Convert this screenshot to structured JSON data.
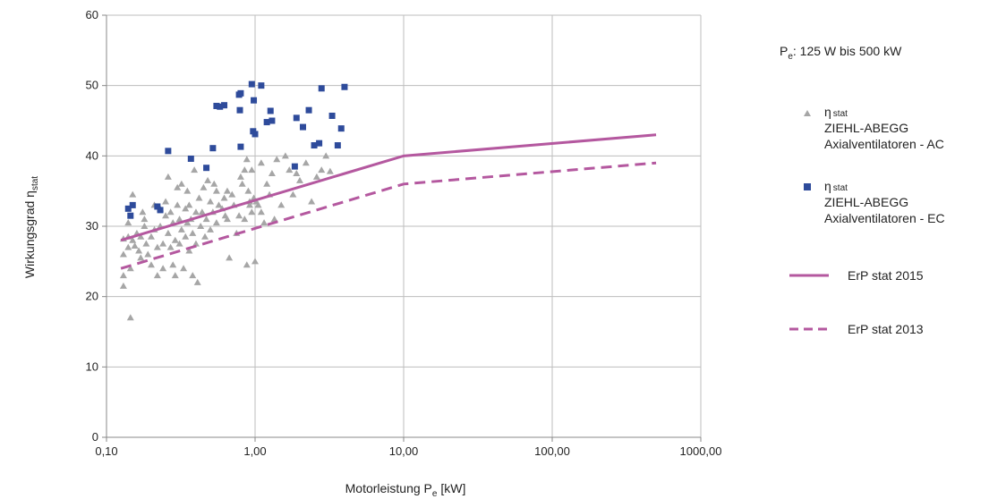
{
  "chart_data": {
    "type": "scatter",
    "x_scale": "log",
    "xlim": [
      0.1,
      1000
    ],
    "ylim": [
      0,
      60
    ],
    "x_ticks": [
      0.1,
      1,
      10,
      100,
      1000
    ],
    "x_tick_labels": [
      "0,10",
      "1,00",
      "10,00",
      "100,00",
      "1000,00"
    ],
    "y_ticks": [
      0,
      10,
      20,
      30,
      40,
      50,
      60
    ],
    "y_tick_labels": [
      "0",
      "10",
      "20",
      "30",
      "40",
      "50",
      "60"
    ],
    "grid": true,
    "xlabel": {
      "main": "Motorleistung P",
      "sub": "e",
      "unit": " [kW]"
    },
    "ylabel": {
      "main": "Wirkungsgrad η",
      "sub": "stat"
    },
    "legend_position": "right",
    "range_note": {
      "main": "P",
      "sub": "e",
      "rest": ": 125 W bis 500 kW"
    },
    "series": [
      {
        "id": "ac",
        "legend_sym": "η",
        "legend_sub": "stat",
        "legend_lines": [
          "ZIEHL-ABEGG",
          "Axialventilatoren - AC"
        ],
        "marker": "triangle",
        "color": "#a6a6a6",
        "points": [
          [
            0.13,
            28.2
          ],
          [
            0.13,
            26
          ],
          [
            0.13,
            23
          ],
          [
            0.13,
            21.5
          ],
          [
            0.14,
            28.5
          ],
          [
            0.14,
            30.5
          ],
          [
            0.14,
            27
          ],
          [
            0.145,
            24
          ],
          [
            0.15,
            34.5
          ],
          [
            0.145,
            17
          ],
          [
            0.15,
            28
          ],
          [
            0.155,
            27.2
          ],
          [
            0.16,
            29
          ],
          [
            0.165,
            26.5
          ],
          [
            0.17,
            28.5
          ],
          [
            0.17,
            25.5
          ],
          [
            0.175,
            32
          ],
          [
            0.18,
            31
          ],
          [
            0.18,
            30
          ],
          [
            0.185,
            27.5
          ],
          [
            0.19,
            26
          ],
          [
            0.2,
            28.5
          ],
          [
            0.2,
            24.5
          ],
          [
            0.21,
            33
          ],
          [
            0.21,
            29.5
          ],
          [
            0.22,
            27
          ],
          [
            0.22,
            23
          ],
          [
            0.23,
            32.5
          ],
          [
            0.23,
            30
          ],
          [
            0.24,
            27.5
          ],
          [
            0.24,
            24
          ],
          [
            0.25,
            33.5
          ],
          [
            0.25,
            31.5
          ],
          [
            0.26,
            29
          ],
          [
            0.26,
            37
          ],
          [
            0.27,
            32
          ],
          [
            0.27,
            27
          ],
          [
            0.28,
            24.5
          ],
          [
            0.28,
            30.5
          ],
          [
            0.29,
            28
          ],
          [
            0.29,
            23
          ],
          [
            0.3,
            35.5
          ],
          [
            0.3,
            33
          ],
          [
            0.31,
            31
          ],
          [
            0.31,
            27.5
          ],
          [
            0.32,
            36
          ],
          [
            0.32,
            29.5
          ],
          [
            0.33,
            24
          ],
          [
            0.34,
            32.5
          ],
          [
            0.34,
            28.5
          ],
          [
            0.35,
            30.5
          ],
          [
            0.35,
            35
          ],
          [
            0.36,
            33
          ],
          [
            0.36,
            26.5
          ],
          [
            0.37,
            31
          ],
          [
            0.38,
            29
          ],
          [
            0.38,
            23
          ],
          [
            0.39,
            38
          ],
          [
            0.4,
            32
          ],
          [
            0.4,
            27.5
          ],
          [
            0.41,
            22
          ],
          [
            0.42,
            34
          ],
          [
            0.43,
            30
          ],
          [
            0.44,
            32
          ],
          [
            0.45,
            35.5
          ],
          [
            0.46,
            28.5
          ],
          [
            0.47,
            31
          ],
          [
            0.48,
            36.5
          ],
          [
            0.5,
            33.5
          ],
          [
            0.5,
            29.5
          ],
          [
            0.52,
            32
          ],
          [
            0.53,
            36
          ],
          [
            0.55,
            30.5
          ],
          [
            0.57,
            33
          ],
          [
            0.6,
            32.5
          ],
          [
            0.62,
            34
          ],
          [
            0.63,
            31.5
          ],
          [
            0.65,
            35
          ],
          [
            0.67,
            25.5
          ],
          [
            0.7,
            34.5
          ],
          [
            0.72,
            33
          ],
          [
            0.75,
            29
          ],
          [
            0.78,
            31.5
          ],
          [
            0.8,
            37
          ],
          [
            0.82,
            36
          ],
          [
            0.85,
            38
          ],
          [
            0.88,
            39.5
          ],
          [
            0.9,
            35
          ],
          [
            0.92,
            33
          ],
          [
            0.95,
            32
          ],
          [
            0.98,
            34
          ],
          [
            1.0,
            25
          ],
          [
            1.02,
            33.5
          ],
          [
            1.05,
            33
          ],
          [
            1.1,
            32
          ],
          [
            1.15,
            30.5
          ],
          [
            1.2,
            36
          ],
          [
            1.25,
            34.5
          ],
          [
            1.3,
            37.5
          ],
          [
            1.35,
            31
          ],
          [
            1.4,
            39.5
          ],
          [
            1.5,
            33
          ],
          [
            1.6,
            40
          ],
          [
            1.7,
            38
          ],
          [
            1.8,
            34.5
          ],
          [
            1.9,
            37.5
          ],
          [
            2.0,
            36.5
          ],
          [
            2.2,
            39
          ],
          [
            2.4,
            33.5
          ],
          [
            2.6,
            37
          ],
          [
            2.8,
            38
          ],
          [
            3.0,
            40
          ],
          [
            3.2,
            37.8
          ],
          [
            0.88,
            24.5
          ],
          [
            0.92,
            33.5
          ],
          [
            0.95,
            38
          ],
          [
            1.1,
            39
          ],
          [
            0.65,
            31
          ],
          [
            0.55,
            35
          ],
          [
            0.85,
            31
          ]
        ]
      },
      {
        "id": "ec",
        "legend_sym": "η",
        "legend_sub": "stat",
        "legend_lines": [
          "ZIEHL-ABEGG",
          "Axialventilatoren - EC"
        ],
        "marker": "square",
        "color": "#2e4b9b",
        "points": [
          [
            0.14,
            32.5
          ],
          [
            0.145,
            31.5
          ],
          [
            0.15,
            33
          ],
          [
            0.22,
            32.8
          ],
          [
            0.23,
            32.3
          ],
          [
            0.26,
            40.7
          ],
          [
            0.37,
            39.6
          ],
          [
            0.47,
            38.3
          ],
          [
            0.52,
            41.1
          ],
          [
            0.55,
            47.1
          ],
          [
            0.58,
            47
          ],
          [
            0.62,
            47.2
          ],
          [
            0.78,
            48.7
          ],
          [
            0.79,
            46.5
          ],
          [
            0.8,
            48.9
          ],
          [
            0.8,
            41.3
          ],
          [
            0.95,
            50.2
          ],
          [
            0.97,
            43.5
          ],
          [
            0.98,
            47.9
          ],
          [
            1.0,
            43.1
          ],
          [
            1.1,
            50
          ],
          [
            1.2,
            44.8
          ],
          [
            1.27,
            46.4
          ],
          [
            1.3,
            45
          ],
          [
            1.85,
            38.5
          ],
          [
            1.9,
            45.4
          ],
          [
            2.1,
            44.1
          ],
          [
            2.3,
            46.5
          ],
          [
            2.5,
            41.5
          ],
          [
            2.7,
            41.8
          ],
          [
            2.8,
            49.6
          ],
          [
            3.3,
            45.7
          ],
          [
            3.6,
            41.5
          ],
          [
            3.8,
            43.9
          ],
          [
            4.0,
            49.8
          ]
        ]
      },
      {
        "id": "erp2015",
        "legend_label": "ErP stat 2015",
        "line": "solid",
        "color": "#b4589f",
        "points": [
          [
            0.125,
            28
          ],
          [
            10,
            40
          ],
          [
            500,
            43
          ]
        ]
      },
      {
        "id": "erp2013",
        "legend_label": "ErP stat 2013",
        "line": "dashed",
        "color": "#b4589f",
        "points": [
          [
            0.125,
            24
          ],
          [
            10,
            36
          ],
          [
            500,
            39
          ]
        ]
      }
    ]
  }
}
